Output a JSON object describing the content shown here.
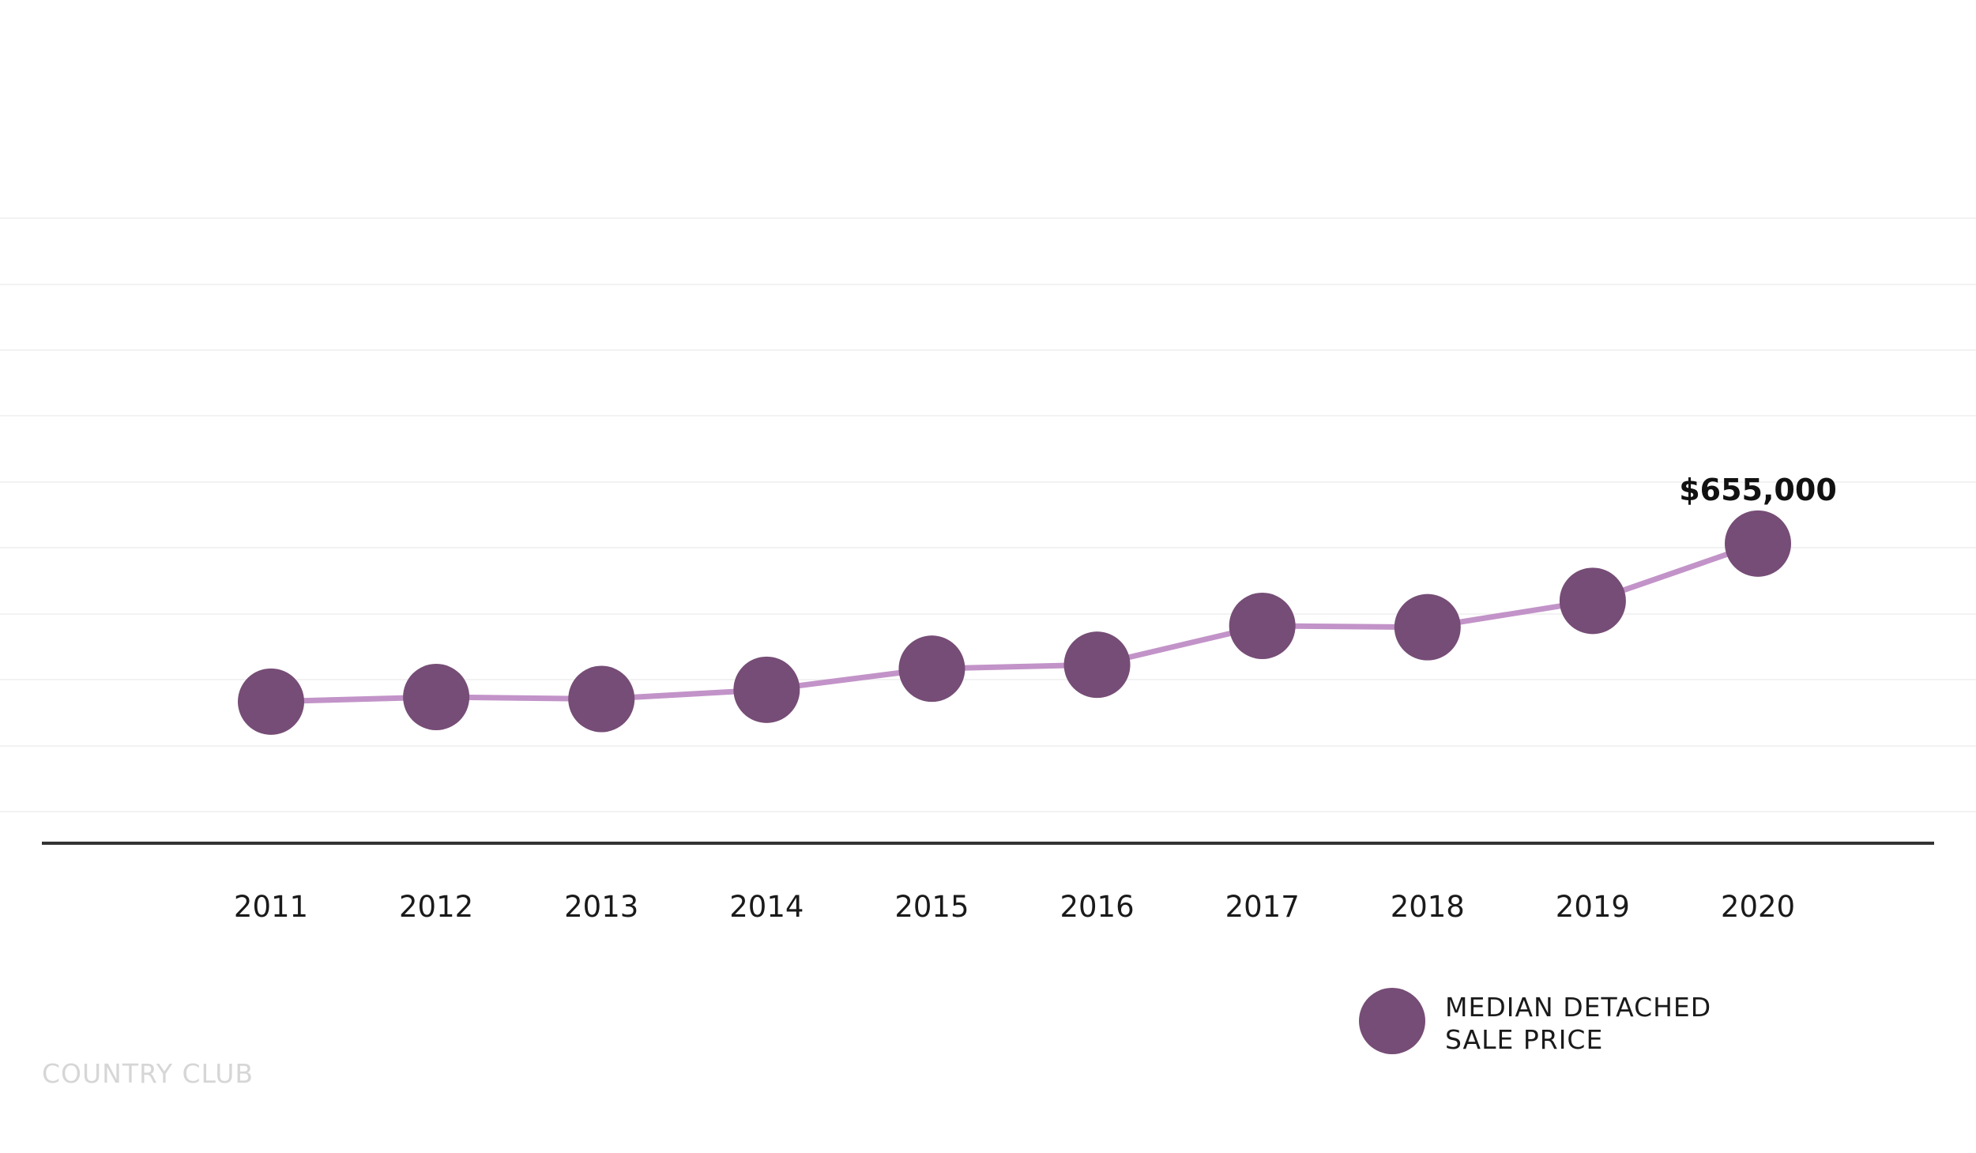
{
  "chart_data": {
    "type": "line",
    "x": [
      "2011",
      "2012",
      "2013",
      "2014",
      "2015",
      "2016",
      "2017",
      "2018",
      "2019",
      "2020"
    ],
    "series": [
      {
        "name": "MEDIAN DETACHED SALE PRICE",
        "values": [
          415000,
          422000,
          419000,
          433000,
          465000,
          471000,
          530000,
          528000,
          568000,
          655000
        ]
      }
    ],
    "data_labels": [
      {
        "index": 9,
        "text": "$655,000"
      }
    ],
    "ylim": [
      200000,
      800000
    ],
    "grid": true,
    "legend": {
      "position": "bottom-right",
      "lines": [
        "MEDIAN DETACHED",
        "SALE PRICE"
      ]
    },
    "colors": {
      "line": "#c293c8",
      "marker": "#764d76",
      "axis": "#333333",
      "grid": "#f2f2f2",
      "watermark": "#d6d6d6"
    }
  },
  "watermark": "COUNTRY CLUB"
}
